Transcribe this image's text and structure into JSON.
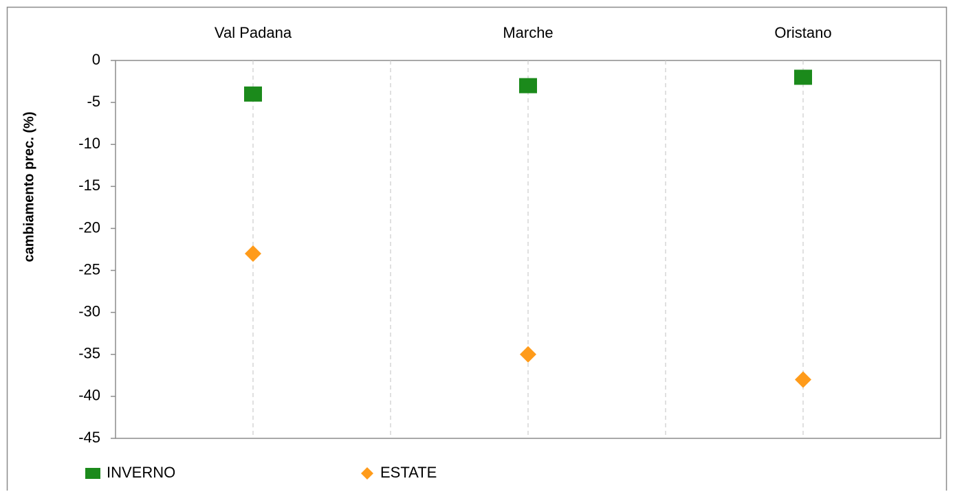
{
  "chart_data": {
    "type": "scatter",
    "categories": [
      "Val Padana",
      "Marche",
      "Oristano"
    ],
    "series": [
      {
        "name": "INVERNO",
        "values": [
          -4,
          -3,
          -2
        ],
        "color": "#1b8a1b",
        "marker": "square"
      },
      {
        "name": "ESTATE",
        "values": [
          -23,
          -35,
          -38
        ],
        "color": "#ff9b1a",
        "marker": "diamond"
      }
    ],
    "ylabel": "cambiamento prec. (%)",
    "ylim": [
      -45,
      0
    ],
    "yticks": [
      0,
      -5,
      -10,
      -15,
      -20,
      -25,
      -30,
      -35,
      -40,
      -45
    ],
    "ytick_labels": [
      "0",
      "-5",
      "-10",
      "-15",
      "-20",
      "-25",
      "-30",
      "-35",
      "-40",
      "-45"
    ],
    "grid": "vertical dashed",
    "category_axis": "top",
    "legend_position": "bottom-left"
  }
}
